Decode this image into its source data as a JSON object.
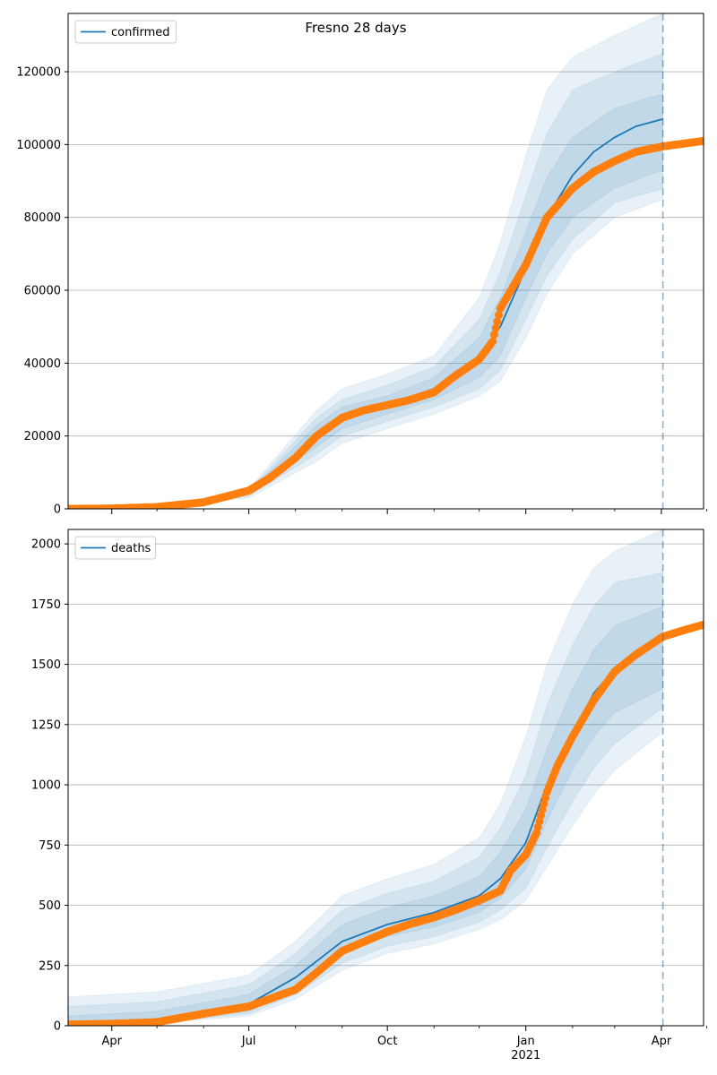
{
  "figure": {
    "title": "Fresno 28 days"
  },
  "colors": {
    "model": "#1f77b4",
    "observed": "#ff7f0e",
    "band": "#1f77b4",
    "grid": "#b0b0b0",
    "forecast_line": "#1f77b4"
  },
  "x_axis": {
    "ticks": [
      {
        "date": "2020-04-01",
        "label": "Apr",
        "sublabel": ""
      },
      {
        "date": "2020-07-01",
        "label": "Jul",
        "sublabel": ""
      },
      {
        "date": "2020-10-01",
        "label": "Oct",
        "sublabel": ""
      },
      {
        "date": "2021-01-01",
        "label": "Jan",
        "sublabel": "2021"
      },
      {
        "date": "2021-04-01",
        "label": "Apr",
        "sublabel": ""
      }
    ],
    "minor_ticks": [
      "2020-05-01",
      "2020-06-01",
      "2020-08-01",
      "2020-09-01",
      "2020-11-01",
      "2020-12-01",
      "2021-02-01",
      "2021-03-01",
      "2021-05-01"
    ]
  },
  "chart_data": [
    {
      "type": "line",
      "legend": [
        "confirmed"
      ],
      "legend_position": "upper-left",
      "xlim": [
        "2020-03-03",
        "2021-04-29"
      ],
      "ylim": [
        0,
        136000
      ],
      "yticks": [
        0,
        20000,
        40000,
        60000,
        80000,
        100000,
        120000
      ],
      "ytick_labels": [
        "0",
        "20000",
        "40000",
        "60000",
        "80000",
        "100000",
        "120000"
      ],
      "grid": "horizontal",
      "forecast_start": "2021-04-02",
      "series": [
        {
          "name": "confirmed",
          "kind": "model_line",
          "points": [
            [
              "2020-08-15",
              20000
            ],
            [
              "2020-09-01",
              25000
            ],
            [
              "2020-10-01",
              28500
            ],
            [
              "2020-11-01",
              33000
            ],
            [
              "2020-12-01",
              42000
            ],
            [
              "2020-12-15",
              50000
            ],
            [
              "2021-01-01",
              66000
            ],
            [
              "2021-01-15",
              80000
            ],
            [
              "2021-02-01",
              91500
            ],
            [
              "2021-02-15",
              98000
            ],
            [
              "2021-03-01",
              102000
            ],
            [
              "2021-03-15",
              105000
            ],
            [
              "2021-04-02",
              107000
            ]
          ]
        },
        {
          "name": "",
          "kind": "uncertainty_bands",
          "points": [
            [
              "2020-03-03",
              0,
              0,
              0,
              0,
              0,
              0
            ],
            [
              "2020-05-15",
              1300,
              1200,
              1100,
              1400,
              1500,
              1600
            ],
            [
              "2020-07-01",
              4000,
              3500,
              3000,
              4500,
              5000,
              5500
            ],
            [
              "2020-08-15",
              17000,
              15000,
              13000,
              23000,
              25000,
              27000
            ],
            [
              "2020-09-01",
              22000,
              20000,
              18000,
              28000,
              30000,
              33000
            ],
            [
              "2020-10-01",
              26000,
              24000,
              22000,
              31000,
              34000,
              37000
            ],
            [
              "2020-11-01",
              30000,
              28000,
              26000,
              36000,
              39000,
              42000
            ],
            [
              "2020-12-01",
              36000,
              33000,
              31000,
              47000,
              52000,
              58000
            ],
            [
              "2020-12-15",
              42000,
              38000,
              35000,
              58000,
              65000,
              73000
            ],
            [
              "2021-01-01",
              58000,
              52000,
              47000,
              76000,
              86000,
              97000
            ],
            [
              "2021-01-15",
              70000,
              64000,
              59000,
              91000,
              103000,
              115000
            ],
            [
              "2021-02-01",
              80000,
              74000,
              70000,
              102000,
              115000,
              124000
            ],
            [
              "2021-03-01",
              88000,
              84000,
              80000,
              110000,
              120000,
              130000
            ],
            [
              "2021-04-02",
              93000,
              88000,
              85000,
              114000,
              125000,
              136000
            ]
          ]
        },
        {
          "name": "",
          "kind": "observed_points",
          "points": [
            [
              "2020-03-03",
              0
            ],
            [
              "2020-04-01",
              100
            ],
            [
              "2020-05-01",
              500
            ],
            [
              "2020-06-01",
              1800
            ],
            [
              "2020-07-01",
              5000
            ],
            [
              "2020-07-15",
              8500
            ],
            [
              "2020-08-01",
              14000
            ],
            [
              "2020-08-15",
              20000
            ],
            [
              "2020-09-01",
              25000
            ],
            [
              "2020-09-15",
              27000
            ],
            [
              "2020-10-01",
              28500
            ],
            [
              "2020-10-15",
              29800
            ],
            [
              "2020-11-01",
              32000
            ],
            [
              "2020-11-15",
              36500
            ],
            [
              "2020-12-01",
              41000
            ],
            [
              "2020-12-10",
              46000
            ],
            [
              "2020-12-15",
              55000
            ],
            [
              "2021-01-01",
              67000
            ],
            [
              "2021-01-15",
              80000
            ],
            [
              "2021-02-01",
              88000
            ],
            [
              "2021-02-15",
              92500
            ],
            [
              "2021-03-01",
              95500
            ],
            [
              "2021-03-15",
              98000
            ],
            [
              "2021-04-02",
              99500
            ],
            [
              "2021-04-29",
              101000
            ]
          ]
        }
      ]
    },
    {
      "type": "line",
      "legend": [
        "deaths"
      ],
      "legend_position": "upper-left",
      "xlim": [
        "2020-03-03",
        "2021-04-29"
      ],
      "ylim": [
        0,
        2060
      ],
      "yticks": [
        0,
        250,
        500,
        750,
        1000,
        1250,
        1500,
        1750,
        2000
      ],
      "ytick_labels": [
        "0",
        "250",
        "500",
        "750",
        "1000",
        "1250",
        "1500",
        "1750",
        "2000"
      ],
      "grid": "horizontal",
      "forecast_start": "2021-04-02",
      "series": [
        {
          "name": "deaths",
          "kind": "model_line",
          "points": [
            [
              "2020-07-01",
              90
            ],
            [
              "2020-08-01",
              200
            ],
            [
              "2020-09-01",
              350
            ],
            [
              "2020-10-01",
              420
            ],
            [
              "2020-11-01",
              470
            ],
            [
              "2020-12-01",
              540
            ],
            [
              "2020-12-15",
              610
            ],
            [
              "2021-01-01",
              760
            ],
            [
              "2021-01-15",
              1000
            ],
            [
              "2021-02-01",
              1200
            ],
            [
              "2021-02-15",
              1380
            ],
            [
              "2021-03-01",
              1480
            ],
            [
              "2021-03-15",
              1550
            ],
            [
              "2021-04-02",
              1600
            ]
          ]
        },
        {
          "name": "",
          "kind": "uncertainty_bands",
          "points": [
            [
              "2020-03-03",
              3,
              3,
              3,
              40,
              80,
              120
            ],
            [
              "2020-05-01",
              15,
              12,
              10,
              60,
              100,
              140
            ],
            [
              "2020-07-01",
              60,
              50,
              40,
              130,
              170,
              210
            ],
            [
              "2020-08-01",
              160,
              130,
              110,
              250,
              300,
              350
            ],
            [
              "2020-09-01",
              300,
              260,
              230,
              420,
              480,
              540
            ],
            [
              "2020-10-01",
              370,
              330,
              300,
              490,
              550,
              610
            ],
            [
              "2020-11-01",
              410,
              370,
              340,
              540,
              600,
              670
            ],
            [
              "2020-12-01",
              470,
              430,
              400,
              620,
              700,
              780
            ],
            [
              "2020-12-15",
              530,
              480,
              440,
              720,
              820,
              920
            ],
            [
              "2021-01-01",
              650,
              570,
              520,
              900,
              1040,
              1200
            ],
            [
              "2021-01-15",
              850,
              740,
              660,
              1150,
              1330,
              1500
            ],
            [
              "2021-02-01",
              1060,
              930,
              830,
              1400,
              1580,
              1750
            ],
            [
              "2021-02-15",
              1200,
              1070,
              960,
              1560,
              1740,
              1900
            ],
            [
              "2021-03-01",
              1300,
              1170,
              1060,
              1660,
              1840,
              1970
            ],
            [
              "2021-04-02",
              1400,
              1320,
              1220,
              1740,
              1880,
              2060
            ]
          ]
        },
        {
          "name": "",
          "kind": "observed_points",
          "points": [
            [
              "2020-03-03",
              5
            ],
            [
              "2020-04-01",
              8
            ],
            [
              "2020-05-01",
              15
            ],
            [
              "2020-06-01",
              50
            ],
            [
              "2020-07-01",
              80
            ],
            [
              "2020-08-01",
              150
            ],
            [
              "2020-08-15",
              220
            ],
            [
              "2020-09-01",
              310
            ],
            [
              "2020-10-01",
              390
            ],
            [
              "2020-10-15",
              420
            ],
            [
              "2020-11-01",
              450
            ],
            [
              "2020-11-15",
              480
            ],
            [
              "2020-12-01",
              520
            ],
            [
              "2020-12-15",
              560
            ],
            [
              "2020-12-22",
              645
            ],
            [
              "2021-01-01",
              710
            ],
            [
              "2021-01-08",
              800
            ],
            [
              "2021-01-15",
              970
            ],
            [
              "2021-01-22",
              1080
            ],
            [
              "2021-02-01",
              1200
            ],
            [
              "2021-02-15",
              1350
            ],
            [
              "2021-03-01",
              1470
            ],
            [
              "2021-03-15",
              1540
            ],
            [
              "2021-04-02",
              1615
            ],
            [
              "2021-04-15",
              1640
            ],
            [
              "2021-04-29",
              1665
            ]
          ]
        }
      ]
    }
  ]
}
